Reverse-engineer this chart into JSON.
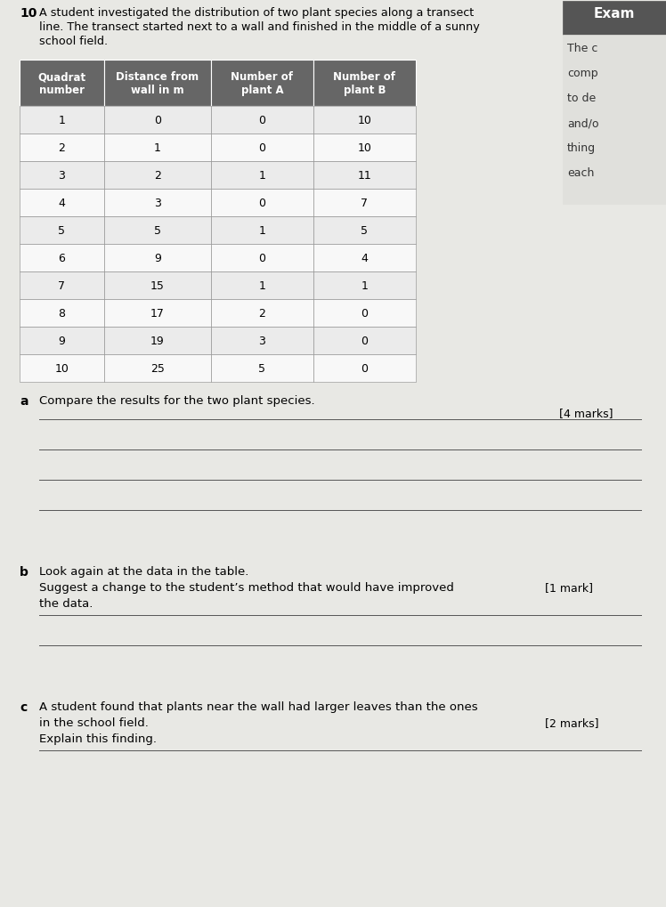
{
  "question_number": "10",
  "question_text_line1": "A student investigated the distribution of two plant species along a transect",
  "question_text_line2": "line. The transect started next to a wall and finished in the middle of a sunny",
  "question_text_line3": "school field.",
  "exam_tip_title": "Exam",
  "exam_tip_lines": [
    "The c",
    "comp",
    "to de",
    "and/o",
    "thing",
    "each"
  ],
  "table_headers": [
    "Quadrat\nnumber",
    "Distance from\nwall in m",
    "Number of\nplant A",
    "Number of\nplant B"
  ],
  "table_data": [
    [
      1,
      0,
      0,
      10
    ],
    [
      2,
      1,
      0,
      10
    ],
    [
      3,
      2,
      1,
      11
    ],
    [
      4,
      3,
      0,
      7
    ],
    [
      5,
      5,
      1,
      5
    ],
    [
      6,
      9,
      0,
      4
    ],
    [
      7,
      15,
      1,
      1
    ],
    [
      8,
      17,
      2,
      0
    ],
    [
      9,
      19,
      3,
      0
    ],
    [
      10,
      25,
      5,
      0
    ]
  ],
  "header_bg": "#666666",
  "header_fg": "#ffffff",
  "row_bg_light": "#ebebeb",
  "row_bg_white": "#f8f8f8",
  "table_border": "#888888",
  "part_a_label": "a",
  "part_a_text": "Compare the results for the two plant species.",
  "part_a_marks": "[4 marks]",
  "part_a_lines": 4,
  "part_b_label": "b",
  "part_b_line1": "Look again at the data in the table.",
  "part_b_line2": "Suggest a change to the student’s method that would have improved",
  "part_b_line3": "the data.",
  "part_b_marks": "[1 mark]",
  "part_b_lines": 2,
  "part_c_label": "c",
  "part_c_line1": "A student found that plants near the wall had larger leaves than the ones",
  "part_c_line2": "in the school field.",
  "part_c_line3": "Explain this finding.",
  "part_c_marks": "[2 marks]",
  "part_c_lines": 1,
  "body_bg": "#e8e8e4",
  "exam_box_bg": "#555555",
  "line_color": "#555555"
}
